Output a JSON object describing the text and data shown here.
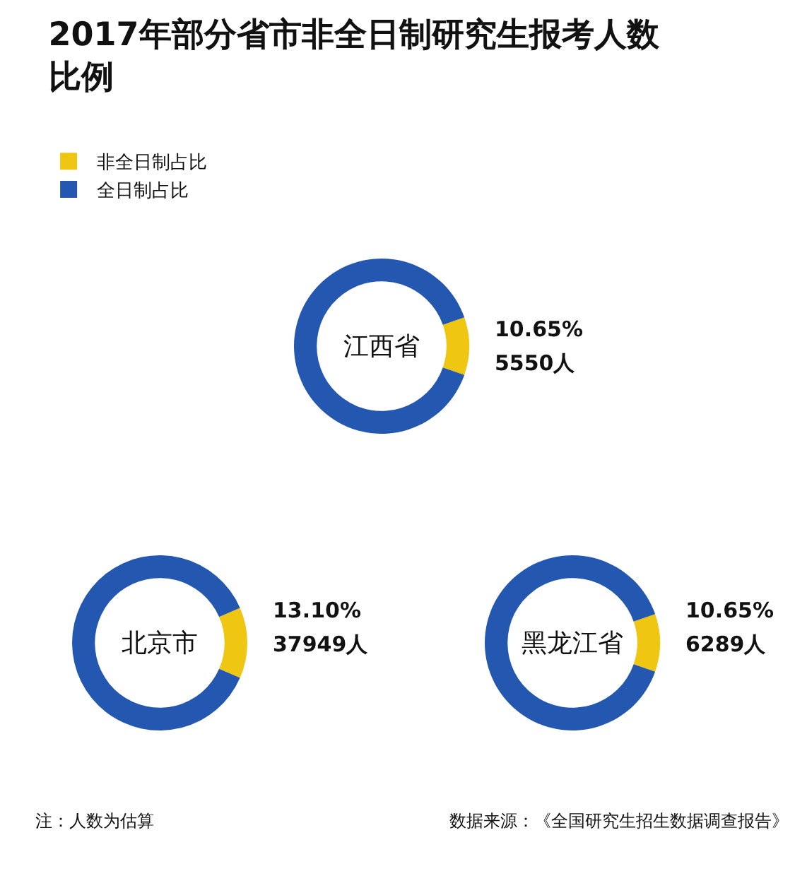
{
  "chart_data": [
    {
      "type": "donut",
      "title": "2017年部分省市非全日制研究生报考人数比例",
      "subtitle": "江西省",
      "categories": [
        "非全日制占比",
        "全日制占比"
      ],
      "values": [
        10.65,
        89.35
      ],
      "colors": [
        "#efc612",
        "#2458b0"
      ],
      "value_labels": [
        "10.65%",
        null
      ],
      "annotations": [
        "5550人"
      ],
      "legend": "top left"
    },
    {
      "type": "donut",
      "subtitle": "北京市",
      "values": [
        13.1,
        86.9
      ],
      "colors": [
        "#efc612",
        "#2458b0"
      ],
      "value_labels": [
        "13.10%",
        null
      ],
      "annotations": [
        "37949人"
      ]
    },
    {
      "type": "donut",
      "subtitle": "黑龙江省",
      "values": [
        10.65,
        89.35
      ],
      "colors": [
        "#efc612",
        "#2458b0"
      ],
      "value_labels": [
        "10.65%",
        null
      ],
      "annotations": [
        "6289人",
        "注：人数为估算",
        "数据来源：《全国研究生招生数据调查报告》"
      ]
    }
  ]
}
